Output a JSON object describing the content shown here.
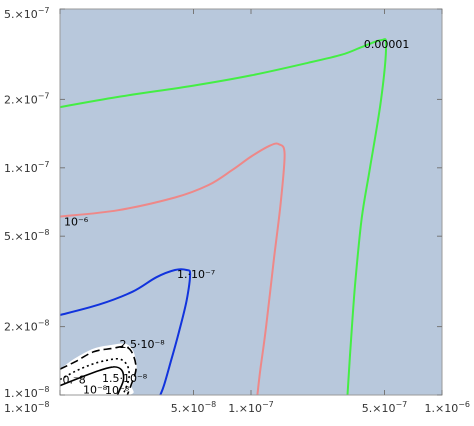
{
  "chart_data": {
    "type": "contour",
    "scale": {
      "x": "log",
      "y": "log"
    },
    "xlim": [
      1e-08,
      1e-06
    ],
    "ylim": [
      1e-08,
      5e-07
    ],
    "background_color": "#b8c8dc",
    "x_ticks": [
      {
        "value": 1e-08,
        "mant": "1.×10",
        "exp": "−8"
      },
      {
        "value": 5e-08,
        "mant": "5.×10",
        "exp": "−8"
      },
      {
        "value": 1e-07,
        "mant": "1.×10",
        "exp": "−7"
      },
      {
        "value": 5e-07,
        "mant": "5.×10",
        "exp": "−7"
      },
      {
        "value": 1e-06,
        "mant": "1.×10",
        "exp": "−6"
      }
    ],
    "y_ticks": [
      {
        "value": 1e-08,
        "mant": "1.×10",
        "exp": "−8"
      },
      {
        "value": 2e-08,
        "mant": "2.×10",
        "exp": "−8"
      },
      {
        "value": 5e-08,
        "mant": "5.×10",
        "exp": "−8"
      },
      {
        "value": 1e-07,
        "mant": "1.×10",
        "exp": "−7"
      },
      {
        "value": 2e-07,
        "mant": "2.×10",
        "exp": "−7"
      },
      {
        "value": 5e-07,
        "mant": "5.×10",
        "exp": "−7"
      }
    ],
    "contours": [
      {
        "label": "0.00001",
        "color": "#44ee44",
        "dash": "",
        "label_at": [
          3.9e-07,
          3.5e-07
        ],
        "points": [
          [
            1e-08,
            1.85e-07
          ],
          [
            2e-08,
            2.05e-07
          ],
          [
            5e-08,
            2.3e-07
          ],
          [
            1e-07,
            2.55e-07
          ],
          [
            2e-07,
            2.9e-07
          ],
          [
            3e-07,
            3.15e-07
          ],
          [
            3.8e-07,
            3.4e-07
          ],
          [
            4.8e-07,
            3.65e-07
          ],
          [
            5.1e-07,
            3.45e-07
          ],
          [
            4.8e-07,
            2e-07
          ],
          [
            4.2e-07,
            1e-07
          ],
          [
            3.8e-07,
            6e-08
          ],
          [
            3.5e-07,
            3e-08
          ],
          [
            3.3e-07,
            1.5e-08
          ],
          [
            3.2e-07,
            1e-08
          ]
        ]
      },
      {
        "label": "10⁻⁶",
        "color": "#ee8888",
        "dash": "",
        "label_at": [
          1.05e-08,
          5.8e-08
        ],
        "points": [
          [
            1e-08,
            6.1e-08
          ],
          [
            2e-08,
            6.5e-08
          ],
          [
            4e-08,
            7.4e-08
          ],
          [
            6e-08,
            8.4e-08
          ],
          [
            8e-08,
            9.8e-08
          ],
          [
            1e-07,
            1.12e-07
          ],
          [
            1.25e-07,
            1.25e-07
          ],
          [
            1.4e-07,
            1.27e-07
          ],
          [
            1.5e-07,
            1.15e-07
          ],
          [
            1.43e-07,
            7e-08
          ],
          [
            1.32e-07,
            4e-08
          ],
          [
            1.2e-07,
            2e-08
          ],
          [
            1.12e-07,
            1.3e-08
          ],
          [
            1.08e-07,
            1e-08
          ]
        ]
      },
      {
        "label": "1.·10⁻⁷",
        "color": "#1133dd",
        "dash": "",
        "label_at": [
          4.1e-08,
          3.4e-08
        ],
        "points": [
          [
            1e-08,
            2.25e-08
          ],
          [
            1.6e-08,
            2.5e-08
          ],
          [
            2.4e-08,
            2.85e-08
          ],
          [
            3.2e-08,
            3.3e-08
          ],
          [
            4e-08,
            3.55e-08
          ],
          [
            4.6e-08,
            3.55e-08
          ],
          [
            4.8e-08,
            3.4e-08
          ],
          [
            4.6e-08,
            2.6e-08
          ],
          [
            4.2e-08,
            1.9e-08
          ],
          [
            3.8e-08,
            1.4e-08
          ],
          [
            3.5e-08,
            1.1e-08
          ],
          [
            3.35e-08,
            1e-08
          ]
        ]
      },
      {
        "label": "2.5·10⁻⁸",
        "color": "#000000",
        "dash": "8 4",
        "label_at": [
          2.05e-08,
          1.68e-08
        ],
        "points": [
          [
            1e-08,
            1.3e-08
          ],
          [
            1.2e-08,
            1.4e-08
          ],
          [
            1.5e-08,
            1.55e-08
          ],
          [
            1.85e-08,
            1.6e-08
          ],
          [
            2.2e-08,
            1.63e-08
          ],
          [
            2.4e-08,
            1.52e-08
          ],
          [
            2.5e-08,
            1.3e-08
          ],
          [
            2.35e-08,
            1.1e-08
          ],
          [
            2.25e-08,
            1e-08
          ]
        ]
      },
      {
        "label": "1.5·10⁻⁸",
        "color": "#000000",
        "dash": "2 3",
        "label_at": [
          1.66e-08,
          1.19e-08
        ],
        "points": [
          [
            1e-08,
            1.17e-08
          ],
          [
            1.2e-08,
            1.27e-08
          ],
          [
            1.45e-08,
            1.36e-08
          ],
          [
            1.75e-08,
            1.42e-08
          ],
          [
            2.05e-08,
            1.44e-08
          ],
          [
            2.25e-08,
            1.35e-08
          ],
          [
            2.3e-08,
            1.2e-08
          ],
          [
            2.2e-08,
            1.06e-08
          ],
          [
            2.12e-08,
            1e-08
          ]
        ]
      },
      {
        "label": "10⁻⁸",
        "color": "#000000",
        "dash": "",
        "label_at": [
          1.72e-08,
          1.05e-08
        ],
        "points": [
          [
            1e-08,
            1.1e-08
          ],
          [
            1.3e-08,
            1.2e-08
          ],
          [
            1.6e-08,
            1.28e-08
          ],
          [
            1.9e-08,
            1.33e-08
          ],
          [
            2.1e-08,
            1.29e-08
          ],
          [
            2.15e-08,
            1.17e-08
          ],
          [
            2.05e-08,
            1.05e-08
          ],
          [
            2e-08,
            1e-08
          ]
        ]
      }
    ],
    "extra_labels": [
      {
        "text": "0.⁻8",
        "at": [
          1.03e-08,
          1.17e-08
        ]
      },
      {
        "text": "10⁻⁸",
        "at": [
          1.32e-08,
          1.06e-08
        ]
      }
    ],
    "white_region": [
      [
        1e-08,
        1.3e-08
      ],
      [
        1.2e-08,
        1.45e-08
      ],
      [
        1.5e-08,
        1.6e-08
      ],
      [
        1.85e-08,
        1.66e-08
      ],
      [
        2.2e-08,
        1.68e-08
      ],
      [
        2.42e-08,
        1.56e-08
      ],
      [
        2.52e-08,
        1.3e-08
      ],
      [
        2.38e-08,
        1.1e-08
      ],
      [
        2.25e-08,
        1e-08
      ],
      [
        1e-08,
        1e-08
      ]
    ]
  }
}
